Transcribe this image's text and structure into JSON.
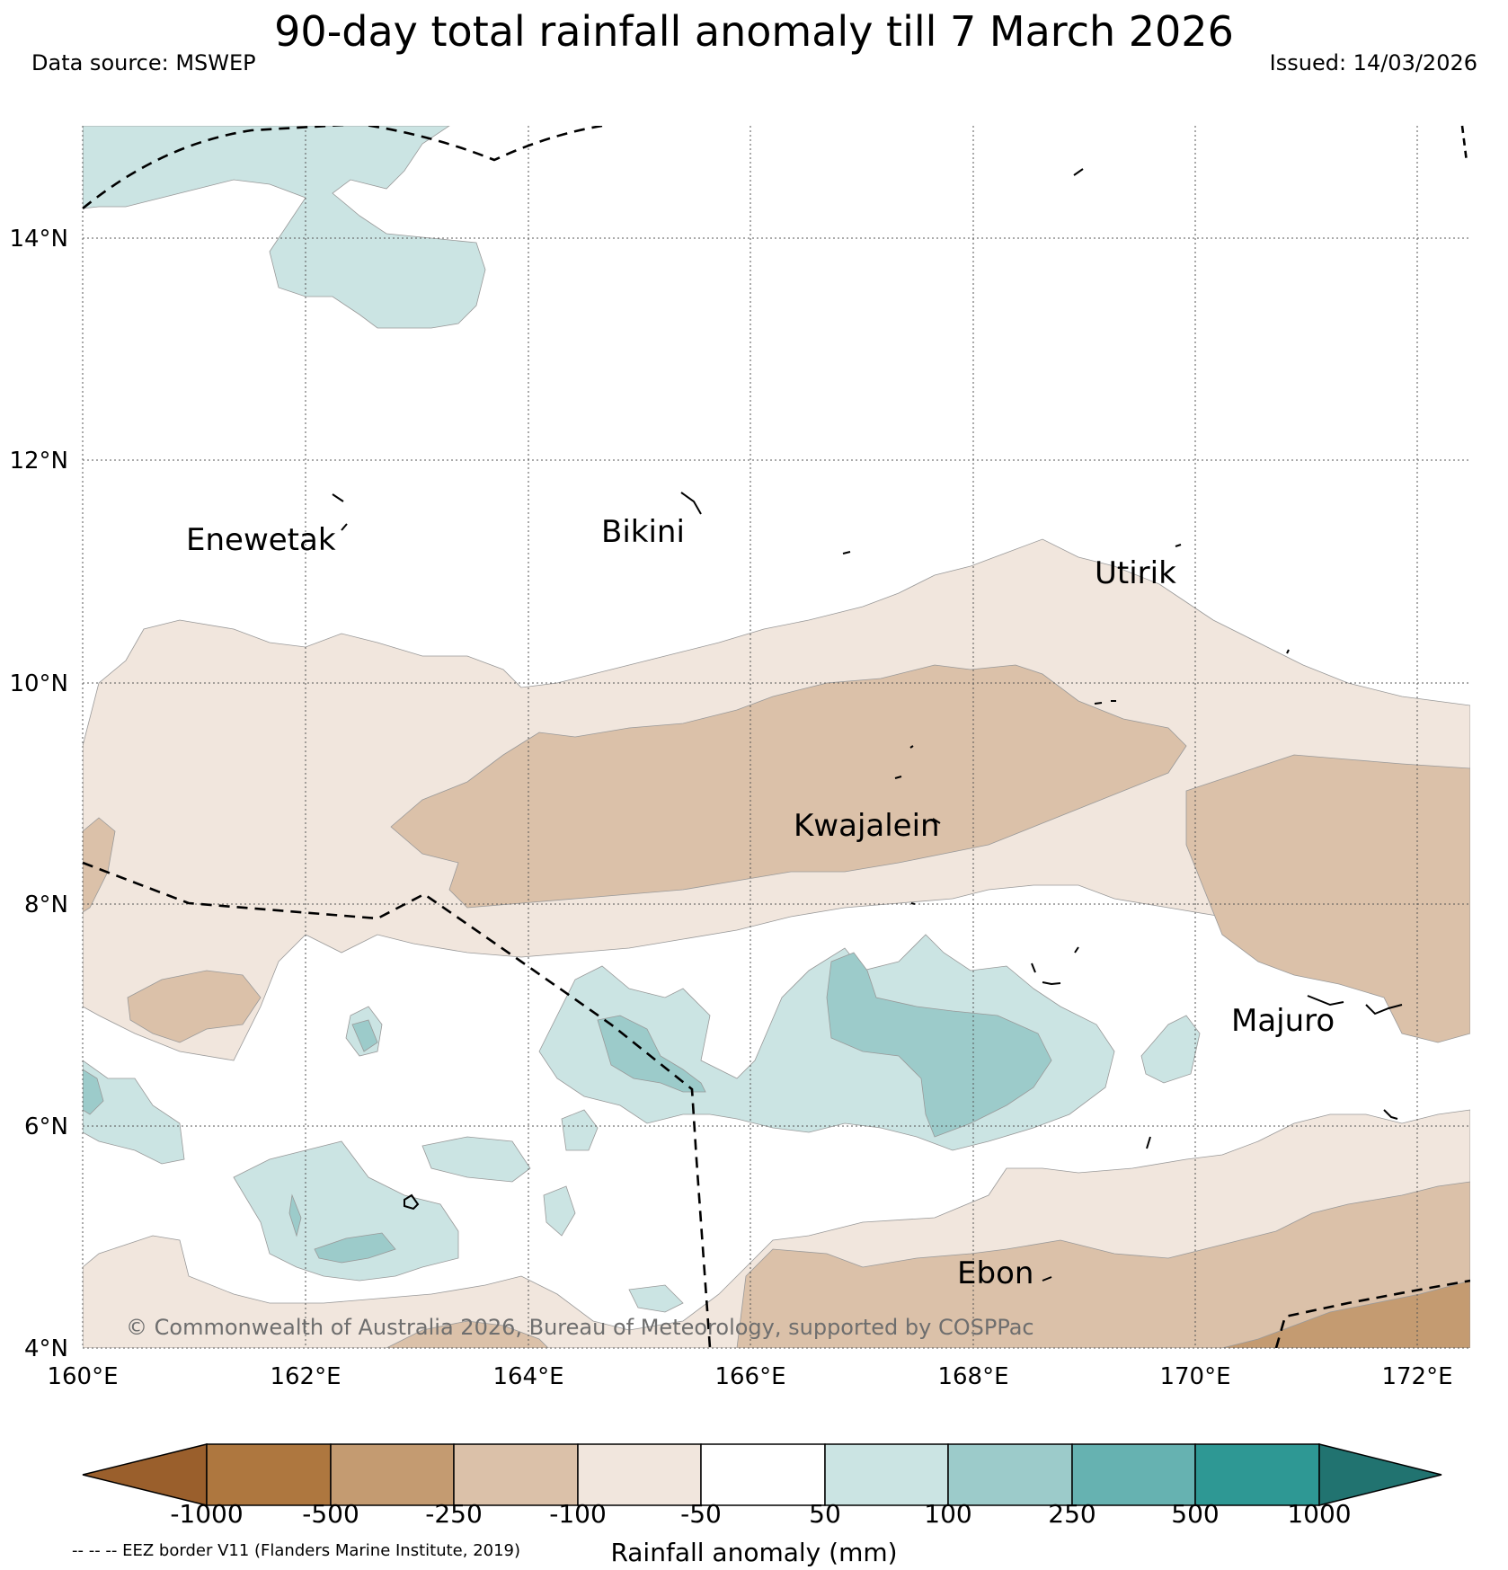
{
  "header": {
    "title": "90-day total rainfall anomaly till 7 March 2026",
    "data_source": "Data source: MSWEP",
    "issued": "Issued: 14/03/2026"
  },
  "axes": {
    "lat_labels": [
      "14°N",
      "12°N",
      "10°N",
      "8°N",
      "6°N",
      "4°N"
    ],
    "lon_labels": [
      "160°E",
      "162°E",
      "164°E",
      "166°E",
      "168°E",
      "170°E",
      "172°E"
    ]
  },
  "places": [
    {
      "name": "Enewetak"
    },
    {
      "name": "Bikini"
    },
    {
      "name": "Utirik"
    },
    {
      "name": "Kwajalein"
    },
    {
      "name": "Majuro"
    },
    {
      "name": "Ebon"
    }
  ],
  "footer": {
    "copyright": "© Commonwealth of Australia 2026, Bureau of Meteorology, supported by COSPPac",
    "eez_note": "-- -- -- EEZ border V11 (Flanders Marine Institute, 2019)"
  },
  "colorbar": {
    "title": "Rainfall anomaly (mm)",
    "labels": [
      "-1000",
      "-500",
      "-250",
      "-100",
      "-50",
      "50",
      "100",
      "250",
      "500",
      "1000"
    ],
    "colors": [
      "#9a5f2c",
      "#ae773f",
      "#c49b71",
      "#dbc1a9",
      "#f1e6dd",
      "#ffffff",
      "#cbe4e3",
      "#9ccbca",
      "#66b2b1",
      "#2e9894",
      "#217370"
    ]
  },
  "map_colors": {
    "neg50": "#f1e6dd",
    "neg100": "#dbc1a9",
    "neg250": "#c49b71",
    "pos50": "#cbe4e3",
    "pos100": "#9ccbca",
    "grid": "#555555",
    "border": "#000000"
  }
}
